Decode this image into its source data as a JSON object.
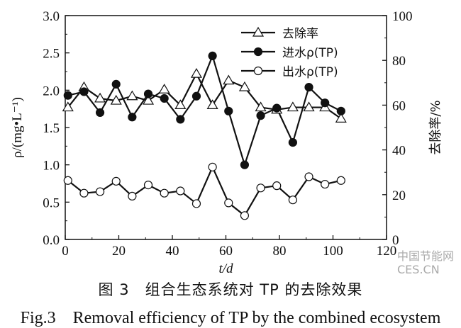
{
  "chart_data": {
    "type": "line",
    "xlabel": "t/d",
    "ylabel": "ρ/(mg•L⁻¹)",
    "ylabel_right": "去除率/%",
    "xlim": [
      0,
      120
    ],
    "ylim": [
      0,
      3.0
    ],
    "ylim_right": [
      0,
      100
    ],
    "xticks": [
      "0",
      "20",
      "40",
      "60",
      "80",
      "100",
      "120"
    ],
    "yticks": [
      "0.0",
      "0.5",
      "1.0",
      "1.5",
      "2.0",
      "2.5",
      "3.0"
    ],
    "yticks_right": [
      "0",
      "20",
      "40",
      "60",
      "80",
      "100"
    ],
    "legend_position": "top-center",
    "x": [
      1,
      7,
      13,
      19,
      25,
      31,
      37,
      43,
      49,
      55,
      61,
      67,
      73,
      79,
      85,
      91,
      97,
      103
    ],
    "series": [
      {
        "name": "去除率",
        "axis": "right",
        "marker": "triangle-open",
        "values": [
          59,
          68,
          63,
          62,
          64,
          62,
          67,
          60,
          74,
          60,
          71,
          68,
          59,
          58,
          59,
          59,
          59,
          54
        ]
      },
      {
        "name": "进水ρ(TP)",
        "axis": "left",
        "marker": "circle-filled",
        "values": [
          1.93,
          1.98,
          1.7,
          2.08,
          1.64,
          1.95,
          1.89,
          1.61,
          1.92,
          2.46,
          1.72,
          1.0,
          1.66,
          1.76,
          1.3,
          2.04,
          1.83,
          1.72
        ]
      },
      {
        "name": "出水ρ(TP)",
        "axis": "left",
        "marker": "circle-open",
        "values": [
          0.79,
          0.62,
          0.64,
          0.78,
          0.58,
          0.73,
          0.62,
          0.65,
          0.48,
          0.97,
          0.49,
          0.32,
          0.69,
          0.72,
          0.53,
          0.84,
          0.74,
          0.79
        ]
      }
    ]
  },
  "caption": {
    "cn": "图 3　组合生态系统对 TP 的去除效果",
    "en": "Fig.3　Removal efficiency of TP by the combined ecosystem"
  },
  "watermark": {
    "line1": "中国节能网",
    "line2": "CES.CN"
  }
}
